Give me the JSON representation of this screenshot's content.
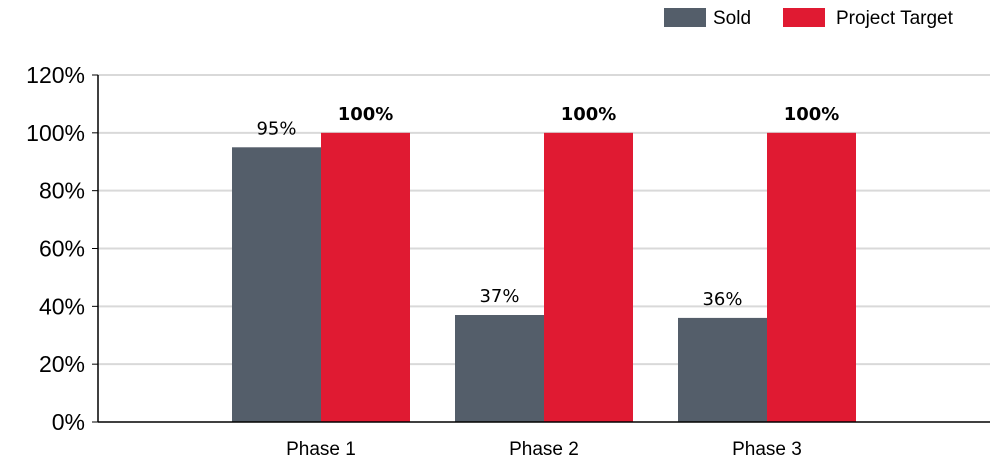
{
  "chart_data": {
    "type": "bar",
    "categories": [
      "Phase 1",
      "Phase 2",
      "Phase 3"
    ],
    "series": [
      {
        "name": "Sold",
        "values": [
          95,
          37,
          36
        ],
        "labels": [
          "95%",
          "37%",
          "36%"
        ],
        "color": "#545e6a",
        "label_bold": false
      },
      {
        "name": "Project Target",
        "values": [
          100,
          100,
          100
        ],
        "labels": [
          "100%",
          "100%",
          "100%"
        ],
        "color": "#e01a32",
        "label_bold": true
      }
    ],
    "yticks": [
      "0%",
      "20%",
      "40%",
      "60%",
      "80%",
      "100%",
      "120%"
    ],
    "ylim": [
      0,
      120
    ],
    "ystep": 20,
    "grid": true,
    "grid_color": "#d9d9d9",
    "legend_position": "top-right",
    "title": "",
    "xlabel": "",
    "ylabel": ""
  }
}
